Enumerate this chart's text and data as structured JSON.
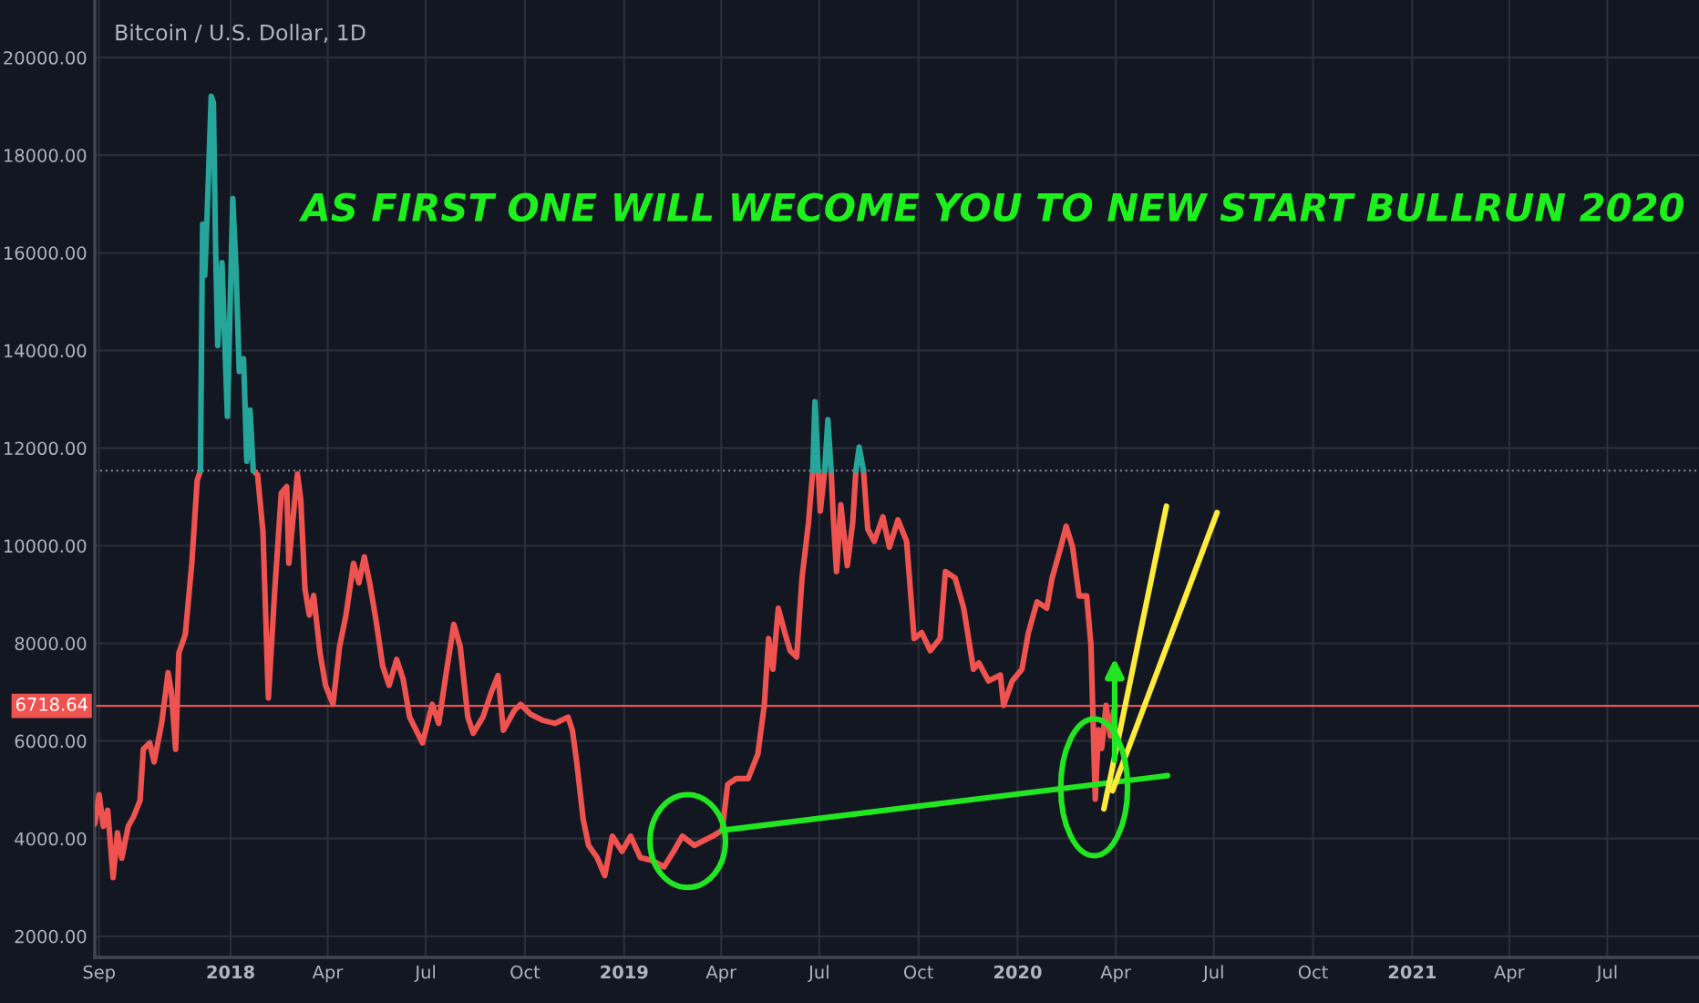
{
  "chart_data": {
    "type": "line",
    "title": "Bitcoin / U.S. Dollar, 1D",
    "annotations": [
      "AS FIRST ONE WILL WECOME YOU TO NEW START BULLRUN 2020"
    ],
    "series": [
      {
        "color": "#ef5350",
        "x": [
          "2017-08-28",
          "2017-09-01",
          "2017-09-05",
          "2017-09-09",
          "2017-09-14",
          "2017-09-18",
          "2017-09-22",
          "2017-09-28",
          "2017-10-03",
          "2017-10-09",
          "2017-10-12",
          "2017-10-18",
          "2017-10-22",
          "2017-10-29",
          "2017-11-04",
          "2017-11-07",
          "2017-11-11",
          "2017-11-14",
          "2017-11-20",
          "2017-11-26",
          "2017-12-01",
          "2017-12-04",
          "2017-12-20",
          "2018-01-22",
          "2018-01-26",
          "2018-01-31",
          "2018-02-05",
          "2018-02-11",
          "2018-02-17",
          "2018-02-22",
          "2018-02-24",
          "2018-03-01",
          "2018-03-04",
          "2018-03-07",
          "2018-03-11",
          "2018-03-15",
          "2018-03-19",
          "2018-03-25",
          "2018-03-30",
          "2018-04-06",
          "2018-04-12",
          "2018-04-18",
          "2018-04-25",
          "2018-04-30",
          "2018-05-05",
          "2018-05-10",
          "2018-05-16",
          "2018-05-22",
          "2018-05-28",
          "2018-06-04",
          "2018-06-10",
          "2018-06-16",
          "2018-06-28",
          "2018-07-07",
          "2018-07-13",
          "2018-07-20",
          "2018-07-27",
          "2018-08-02",
          "2018-08-09",
          "2018-08-14",
          "2018-08-23",
          "2018-08-31",
          "2018-09-06",
          "2018-09-11",
          "2018-09-21",
          "2018-09-27",
          "2018-10-06",
          "2018-10-18",
          "2018-10-29",
          "2018-11-10",
          "2018-11-14",
          "2018-11-18",
          "2018-11-24",
          "2018-11-29",
          "2018-12-07",
          "2018-12-14",
          "2018-12-21",
          "2018-12-30",
          "2019-01-07",
          "2019-01-16",
          "2019-01-27",
          "2019-02-07",
          "2019-02-16",
          "2019-02-24",
          "2019-03-07",
          "2019-03-24",
          "2019-04-02",
          "2019-04-07",
          "2019-04-15",
          "2019-04-26",
          "2019-05-05",
          "2019-05-11",
          "2019-05-15",
          "2019-05-19",
          "2019-05-24",
          "2019-05-30",
          "2019-06-04",
          "2019-06-10",
          "2019-06-15",
          "2019-06-21",
          "2019-06-25",
          "2019-06-27",
          "2019-06-30",
          "2019-07-02",
          "2019-07-06",
          "2019-07-09",
          "2019-07-12",
          "2019-07-14",
          "2019-07-17",
          "2019-07-21",
          "2019-07-27",
          "2019-08-01",
          "2019-08-04",
          "2019-08-07",
          "2019-08-11",
          "2019-08-15",
          "2019-08-21",
          "2019-08-29",
          "2019-09-04",
          "2019-09-12",
          "2019-09-20",
          "2019-09-27",
          "2019-10-04",
          "2019-10-12",
          "2019-10-21",
          "2019-10-26",
          "2019-11-04",
          "2019-11-12",
          "2019-11-21",
          "2019-11-26",
          "2019-12-05",
          "2019-12-16",
          "2019-12-19",
          "2019-12-27",
          "2020-01-05",
          "2020-01-11",
          "2020-01-19",
          "2020-01-28",
          "2020-02-02",
          "2020-02-10",
          "2020-02-15",
          "2020-02-21",
          "2020-02-27",
          "2020-03-05",
          "2020-03-09",
          "2020-03-13",
          "2020-03-16",
          "2020-03-19",
          "2020-03-23",
          "2020-03-27",
          "2020-03-30",
          "2020-04-01"
        ],
        "values": [
          4300,
          4900,
          4250,
          4580,
          3200,
          4120,
          3600,
          4250,
          4450,
          4780,
          5830,
          5960,
          5570,
          6360,
          7400,
          7010,
          5830,
          7800,
          8190,
          9640,
          11340,
          11540,
          null,
          11540,
          11450,
          10290,
          6880,
          9110,
          11080,
          11210,
          9640,
          10820,
          11470,
          10950,
          9110,
          8580,
          8980,
          7800,
          7140,
          6750,
          7930,
          8580,
          9640,
          9240,
          9770,
          9240,
          8450,
          7540,
          7140,
          7670,
          7270,
          6490,
          5960,
          6750,
          6360,
          7400,
          8390,
          7930,
          6490,
          6160,
          6490,
          7010,
          7340,
          6220,
          6620,
          6750,
          6550,
          6420,
          6360,
          6490,
          6220,
          5570,
          4400,
          3860,
          3610,
          3240,
          4050,
          3740,
          4050,
          3610,
          3550,
          3420,
          3740,
          4050,
          3860,
          4050,
          4170,
          5110,
          5230,
          5230,
          5730,
          6730,
          8100,
          7470,
          8720,
          8220,
          7850,
          7720,
          9340,
          10470,
          11540,
          null,
          11540,
          10710,
          11540,
          null,
          11540,
          10590,
          9470,
          10840,
          9590,
          10470,
          11540,
          null,
          11540,
          10340,
          10090,
          10590,
          9970,
          10530,
          10090,
          8100,
          8220,
          7850,
          8100,
          9470,
          9340,
          8720,
          7470,
          7600,
          7230,
          7350,
          6730,
          7230,
          7470,
          8220,
          8850,
          8720,
          9340,
          9970,
          10400,
          9970,
          8970,
          8970,
          7970,
          4810,
          6230,
          5850,
          6730,
          6100,
          6600,
          6720
        ]
      },
      {
        "color": "#26a69a",
        "x": [
          "2017-12-04",
          "2017-12-06",
          "2017-12-08",
          "2017-12-10",
          "2017-12-14",
          "2017-12-16",
          "2017-12-18",
          "2017-12-20",
          "2017-12-24",
          "2017-12-29",
          "2018-01-03",
          "2018-01-06",
          "2018-01-09",
          "2018-01-13",
          "2018-01-16",
          "2018-01-19",
          "2018-01-22",
          "2019-03-01",
          "2019-06-25",
          "2019-06-27",
          "2019-06-30",
          "2019-07-03",
          "2019-07-06",
          "2019-07-09",
          "2019-07-12",
          "2019-07-25",
          "2019-08-04",
          "2019-08-07",
          "2019-08-11"
        ],
        "values": [
          11540,
          16590,
          15540,
          16650,
          19210,
          19080,
          16190,
          14100,
          15800,
          12650,
          17110,
          15670,
          13570,
          13830,
          11730,
          12780,
          11540,
          null,
          11540,
          12950,
          11540,
          null,
          11540,
          12580,
          11540,
          null,
          11540,
          12020,
          11540
        ]
      },
      {
        "type": "line",
        "color": "#22e622",
        "x": [
          "2019-04-02",
          "2020-05-19"
        ],
        "values": [
          4170,
          5290
        ]
      },
      {
        "type": "line",
        "color": "#ffeb3b",
        "x": [
          "2020-03-21",
          "2020-05-18"
        ],
        "values": [
          4610,
          10810
        ]
      },
      {
        "type": "line",
        "color": "#ffeb3b",
        "x": [
          "2020-03-29",
          "2020-07-04"
        ],
        "values": [
          4980,
          10680
        ]
      }
    ],
    "ref_lines": [
      {
        "axis": "y",
        "value": 6718.64,
        "label": "6718.64",
        "color": "#ef5350",
        "line_style": "solid"
      },
      {
        "axis": "y",
        "value": 11540,
        "color": "#787b86",
        "line_style": "dotted"
      }
    ],
    "xlim": [
      "2017-08-28",
      "2021-09-24"
    ],
    "xticks": [
      {
        "value": "2017-09-01",
        "label": "Sep"
      },
      {
        "value": "2018-01-01",
        "label": "2018"
      },
      {
        "value": "2018-04-01",
        "label": "Apr"
      },
      {
        "value": "2018-07-01",
        "label": "Jul"
      },
      {
        "value": "2018-10-01",
        "label": "Oct"
      },
      {
        "value": "2019-01-01",
        "label": "2019"
      },
      {
        "value": "2019-04-01",
        "label": "Apr"
      },
      {
        "value": "2019-07-01",
        "label": "Jul"
      },
      {
        "value": "2019-10-01",
        "label": "Oct"
      },
      {
        "value": "2020-01-01",
        "label": "2020"
      },
      {
        "value": "2020-04-01",
        "label": "Apr"
      },
      {
        "value": "2020-07-01",
        "label": "Jul"
      },
      {
        "value": "2020-10-01",
        "label": "Oct"
      },
      {
        "value": "2021-01-01",
        "label": "2021"
      },
      {
        "value": "2021-04-01",
        "label": "Apr"
      },
      {
        "value": "2021-07-01",
        "label": "Jul"
      }
    ],
    "ylim": [
      1566,
      21180
    ],
    "yticks": [
      {
        "value": 2000,
        "label": "2000.00"
      },
      {
        "value": 4000,
        "label": "4000.00"
      },
      {
        "value": 6000,
        "label": "6000.00"
      },
      {
        "value": 8000,
        "label": "8000.00"
      },
      {
        "value": 10000,
        "label": "10000.00"
      },
      {
        "value": 12000,
        "label": "12000.00"
      },
      {
        "value": 14000,
        "label": "14000.00"
      },
      {
        "value": 16000,
        "label": "16000.00"
      },
      {
        "value": 18000,
        "label": "18000.00"
      },
      {
        "value": 20000,
        "label": "20000.00"
      }
    ],
    "grid": true,
    "marker": "none",
    "line_style": "solid"
  }
}
